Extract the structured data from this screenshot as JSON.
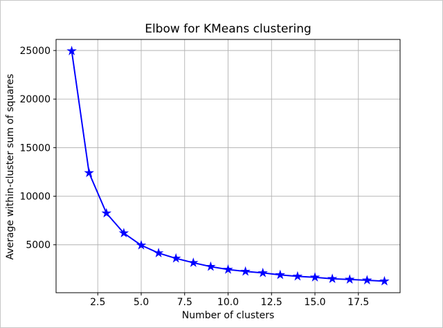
{
  "figure": {
    "background": "#ffffff",
    "border_color": "#c6c6c6"
  },
  "chart_data": {
    "type": "line",
    "title": "Elbow for KMeans clustering",
    "xlabel": "Number of clusters",
    "ylabel": "Average within-cluster sum of squares",
    "x": [
      1,
      2,
      3,
      4,
      5,
      6,
      7,
      8,
      9,
      10,
      11,
      12,
      13,
      14,
      15,
      16,
      17,
      18,
      19
    ],
    "y": [
      24950,
      12400,
      8250,
      6200,
      4950,
      4150,
      3600,
      3150,
      2750,
      2450,
      2250,
      2100,
      1900,
      1750,
      1650,
      1500,
      1430,
      1350,
      1250
    ],
    "xlim": [
      0.1,
      19.9
    ],
    "ylim": [
      66,
      26140
    ],
    "xticks": [
      2.5,
      5.0,
      7.5,
      10.0,
      12.5,
      15.0,
      17.5
    ],
    "xtick_labels": [
      "2.5",
      "5.0",
      "7.5",
      "10.0",
      "12.5",
      "15.0",
      "17.5"
    ],
    "yticks": [
      5000,
      10000,
      15000,
      20000,
      25000
    ],
    "ytick_labels": [
      "5000",
      "10000",
      "15000",
      "20000",
      "25000"
    ],
    "line_color": "#0000ff",
    "line_width": 2,
    "marker": "star",
    "marker_size": 6,
    "grid": true,
    "grid_color": "#b2b2b2",
    "spine_color": "#000000",
    "tick_color": "#000000",
    "legend_position": "none"
  }
}
